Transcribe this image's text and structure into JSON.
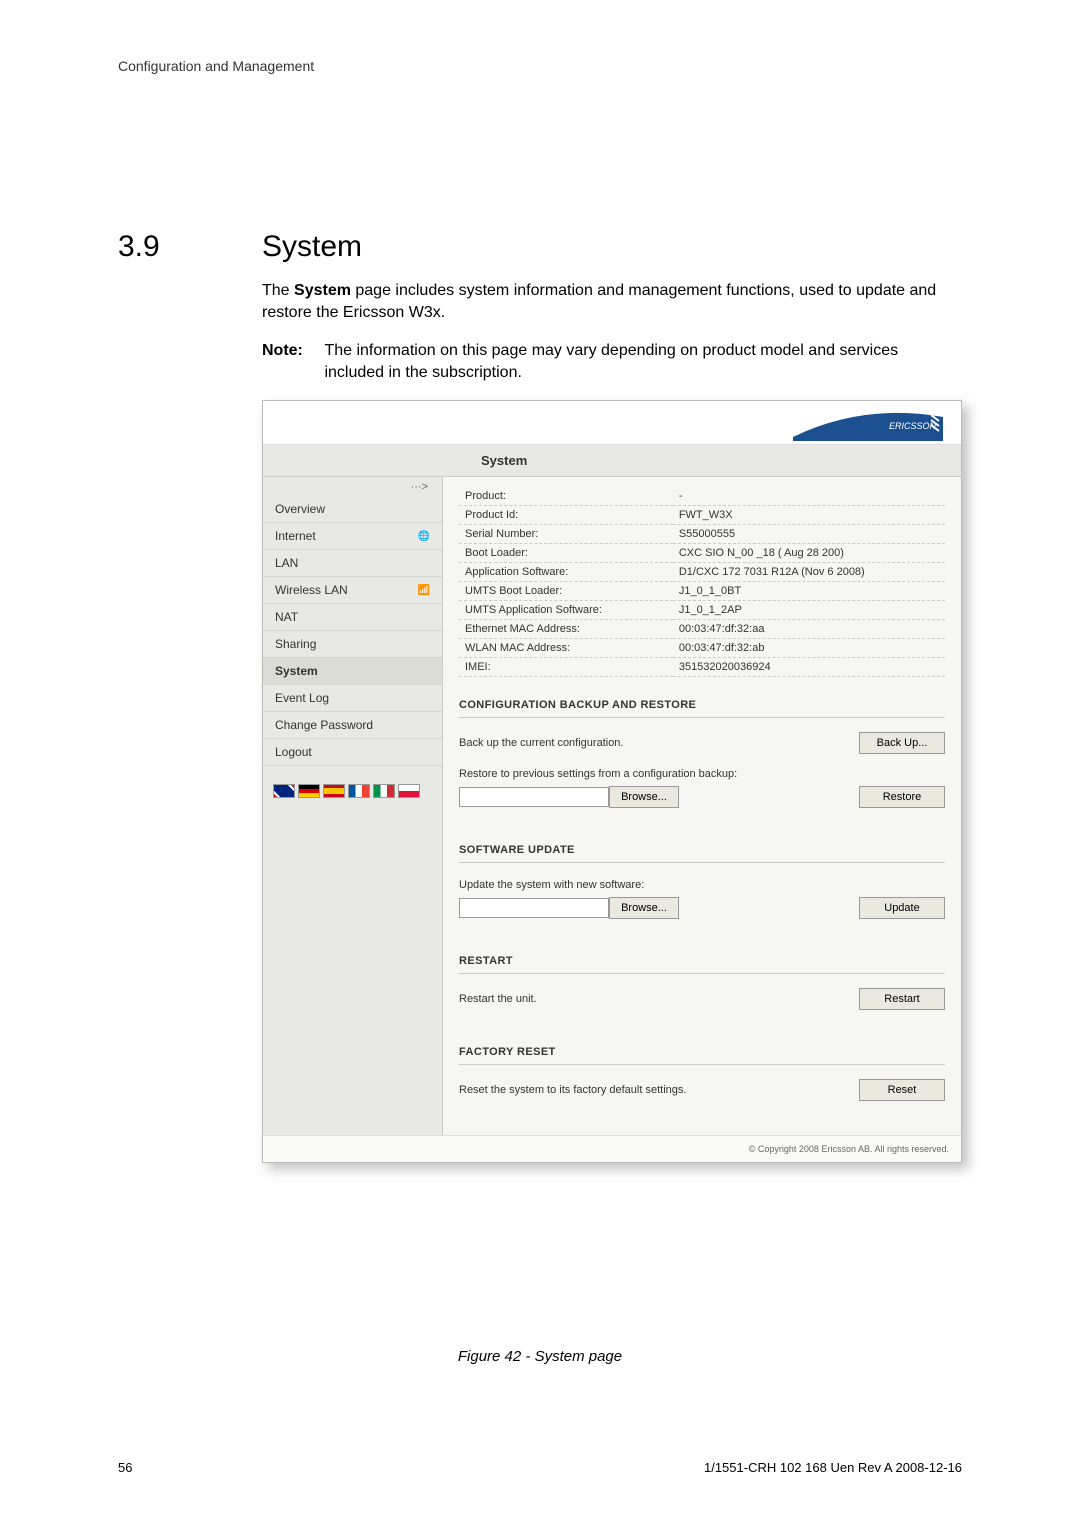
{
  "header": "Configuration and Management",
  "section_number": "3.9",
  "section_title": "System",
  "paragraph": "The <b>System</b> page includes system information and management functions, used to update and restore the Ericsson W3x.",
  "note_label": "Note:",
  "note_body": "The information on this page may vary depending on product model and services included in the subscription.",
  "figure_caption": "Figure 42 - System page",
  "page_number": "56",
  "doc_footer": "1/1551-CRH 102 168 Uen Rev A  2008-12-16",
  "screenshot": {
    "logo_text": "ERICSSON",
    "title": "System",
    "nav_arrow": "···>",
    "sidebar": [
      {
        "label": "Overview",
        "icon": ""
      },
      {
        "label": "Internet",
        "icon": "globe"
      },
      {
        "label": "LAN",
        "icon": ""
      },
      {
        "label": "Wireless LAN",
        "icon": "wifi"
      },
      {
        "label": "NAT",
        "icon": ""
      },
      {
        "label": "Sharing",
        "icon": ""
      },
      {
        "label": "System",
        "icon": "",
        "active": true
      },
      {
        "label": "Event Log",
        "icon": ""
      },
      {
        "label": "Change Password",
        "icon": ""
      },
      {
        "label": "Logout",
        "icon": ""
      }
    ],
    "flags": [
      "uk",
      "de",
      "es",
      "fr",
      "it",
      "pl"
    ],
    "info_rows": [
      {
        "k": "Product:",
        "v": "-"
      },
      {
        "k": "Product Id:",
        "v": "FWT_W3X"
      },
      {
        "k": "Serial Number:",
        "v": "S55000555"
      },
      {
        "k": "Boot Loader:",
        "v": "CXC SIO N_00 _18 ( Aug 28 200)"
      },
      {
        "k": "Application Software:",
        "v": "D1/CXC 172 7031 R12A (Nov 6 2008)"
      },
      {
        "k": "UMTS Boot Loader:",
        "v": "J1_0_1_0BT"
      },
      {
        "k": "UMTS Application Software:",
        "v": "J1_0_1_2AP"
      },
      {
        "k": "Ethernet MAC Address:",
        "v": "00:03:47:df:32:aa"
      },
      {
        "k": "WLAN MAC Address:",
        "v": "00:03:47:df:32:ab"
      },
      {
        "k": "IMEI:",
        "v": "351532020036924"
      }
    ],
    "sections": {
      "backup": {
        "heading": "CONFIGURATION BACKUP AND RESTORE",
        "line1": "Back up the current configuration.",
        "backup_btn": "Back Up...",
        "line2": "Restore to previous settings from a configuration backup:",
        "browse_btn": "Browse...",
        "restore_btn": "Restore"
      },
      "update": {
        "heading": "SOFTWARE UPDATE",
        "line": "Update the system with new software:",
        "browse_btn": "Browse...",
        "update_btn": "Update"
      },
      "restart": {
        "heading": "RESTART",
        "line": "Restart the unit.",
        "btn": "Restart"
      },
      "reset": {
        "heading": "FACTORY RESET",
        "line": "Reset the system to its factory default settings.",
        "btn": "Reset"
      }
    },
    "footer": "© Copyright 2008 Ericsson AB. All rights reserved."
  },
  "colors": {
    "logo_blue": "#1b4f8f",
    "shot_bg": "#f6f6f3",
    "sidebar_bg": "#e8e8e4",
    "btn_bg": "#e9e9df"
  },
  "flag_styles": {
    "uk": "linear-gradient(45deg,#cf142b 10%,#fff 10%,#fff 20%,#00247d 20%,#00247d 80%,#fff 80%,#fff 90%,#cf142b 90%)",
    "de": "linear-gradient(#000 33%,#dd0000 33%,#dd0000 66%,#ffce00 66%)",
    "es": "linear-gradient(#c60b1e 25%,#ffc400 25%,#ffc400 75%,#c60b1e 75%)",
    "fr": "linear-gradient(90deg,#0055a4 33%,#fff 33%,#fff 66%,#ef4135 66%)",
    "it": "linear-gradient(90deg,#009246 33%,#fff 33%,#fff 66%,#ce2b37 66%)",
    "pl": "linear-gradient(#fff 50%,#dc143c 50%)"
  }
}
